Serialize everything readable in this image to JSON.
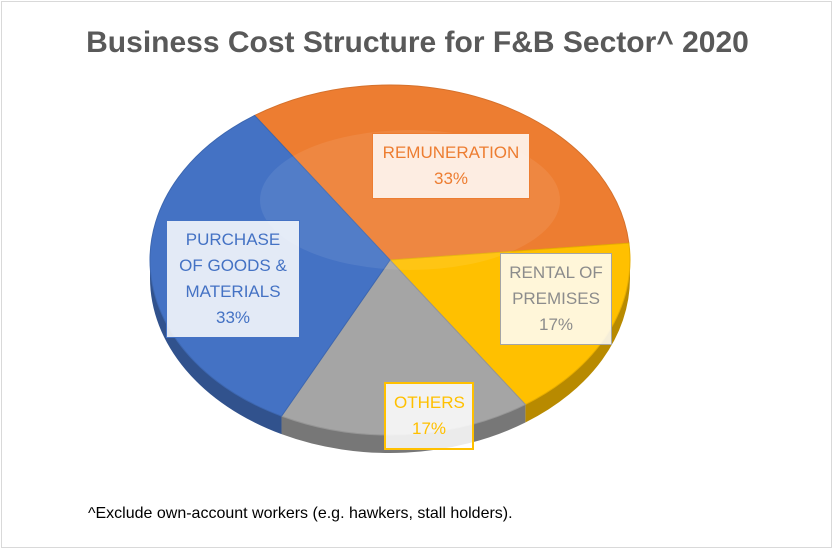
{
  "chart_data": {
    "type": "pie",
    "title": "Business Cost Structure for F&B Sector^ 2020",
    "footnote": "^Exclude own-account workers (e.g. hawkers, stall holders).",
    "slices": [
      {
        "label": "REMUNERATION",
        "value": 33,
        "value_label": "33%",
        "color": "#ed7d31",
        "text_color": "#ed7d31"
      },
      {
        "label": "RENTAL OF PREMISES",
        "value": 17,
        "value_label": "17%",
        "color": "#ffc000",
        "text_color": "#a5a5a5"
      },
      {
        "label": "OTHERS",
        "value": 17,
        "value_label": "17%",
        "color": "#a5a5a5",
        "text_color": "#ffc000"
      },
      {
        "label": "PURCHASE OF GOODS & MATERIALS",
        "value": 33,
        "value_label": "33%",
        "color": "#4472c4",
        "text_color": "#4472c4"
      }
    ]
  }
}
